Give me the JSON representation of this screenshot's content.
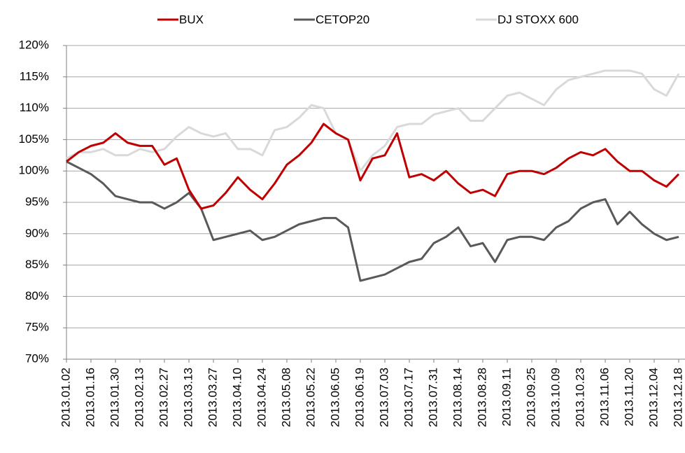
{
  "chart_data": {
    "type": "line",
    "categories": [
      "2013.01.02",
      null,
      "2013.01.16",
      null,
      "2013.01.30",
      null,
      "2013.02.13",
      null,
      "2013.02.27",
      null,
      "2013.03.13",
      null,
      "2013.03.27",
      null,
      "2013.04.10",
      null,
      "2013.04.24",
      null,
      "2013.05.08",
      null,
      "2013.05.22",
      null,
      "2013.06.05",
      null,
      "2013.06.19",
      null,
      "2013.07.03",
      null,
      "2013.07.17",
      null,
      "2013.07.31",
      null,
      "2013.08.14",
      null,
      "2013.08.28",
      null,
      "2013.09.11",
      null,
      "2013.09.25",
      null,
      "2013.10.09",
      null,
      "2013.10.23",
      null,
      "2013.11.06",
      null,
      "2013.11.20",
      null,
      "2013.12.04",
      null,
      "2013.12.18"
    ],
    "series": [
      {
        "name": "BUX",
        "color": "#c00000",
        "values": [
          101.5,
          103,
          104,
          104.5,
          106,
          104.5,
          104,
          104,
          101,
          102,
          97,
          94,
          94.5,
          96.5,
          99,
          97,
          95.5,
          98,
          101,
          102.5,
          104.5,
          107.5,
          106,
          105,
          98.5,
          102,
          102.5,
          106,
          99,
          99.5,
          98.5,
          100,
          98,
          96.5,
          97,
          96,
          99.5,
          100,
          100,
          99.5,
          100.5,
          102,
          103,
          102.5,
          103.5,
          101.5,
          100,
          100,
          98.5,
          97.5,
          99.5
        ]
      },
      {
        "name": "CETOP20",
        "color": "#595959",
        "values": [
          101.5,
          100.5,
          99.5,
          98,
          96,
          95.5,
          95,
          95,
          94,
          95,
          96.5,
          94,
          89,
          89.5,
          90,
          90.5,
          89,
          89.5,
          90.5,
          91.5,
          92,
          92.5,
          92.5,
          91,
          82.5,
          83,
          83.5,
          84.5,
          85.5,
          86,
          88.5,
          89.5,
          91,
          88,
          88.5,
          85.5,
          89,
          89.5,
          89.5,
          89,
          91,
          92,
          94,
          95,
          95.5,
          91.5,
          93.5,
          91.5,
          90,
          89,
          89.5
        ]
      },
      {
        "name": "DJ STOXX 600",
        "color": "#d9d9d9",
        "values": [
          102,
          103,
          103,
          103.5,
          102.5,
          102.5,
          103.5,
          103,
          103.5,
          105.5,
          107,
          106,
          105.5,
          106,
          103.5,
          103.5,
          102.5,
          106.5,
          107,
          108.5,
          110.5,
          110,
          106,
          105,
          100,
          102.5,
          104,
          107,
          107.5,
          107.5,
          109,
          109.5,
          110,
          108,
          108,
          110,
          112,
          112.5,
          111.5,
          110.5,
          113,
          114.5,
          115,
          115.5,
          116,
          116,
          116,
          115.5,
          113,
          112,
          115.5
        ]
      }
    ],
    "ylim": [
      70,
      120
    ],
    "yticks": [
      {
        "value": 70,
        "label": "70%"
      },
      {
        "value": 75,
        "label": "75%"
      },
      {
        "value": 80,
        "label": "80%"
      },
      {
        "value": 85,
        "label": "85%"
      },
      {
        "value": 90,
        "label": "90%"
      },
      {
        "value": 95,
        "label": "95%"
      },
      {
        "value": 100,
        "label": "100%"
      },
      {
        "value": 105,
        "label": "105%"
      },
      {
        "value": 110,
        "label": "110%"
      },
      {
        "value": 115,
        "label": "115%"
      },
      {
        "value": 120,
        "label": "120%"
      }
    ],
    "grid": true,
    "legend": "top"
  }
}
